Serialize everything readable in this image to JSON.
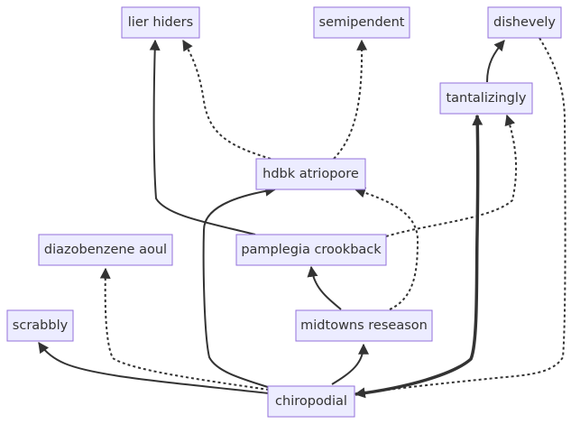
{
  "nodes": {
    "lier_hiders": "lier hiders",
    "semipendent": "semipendent",
    "dishevely": "dishevely",
    "tantalizingly": "tantalizingly",
    "hdbk_atriopore": "hdbk atriopore",
    "diazobenzene_aoul": "diazobenzene aoul",
    "pamplegia_crookback": "pamplegia crookback",
    "scrabbly": "scrabbly",
    "midtowns_reseason": "midtowns reseason",
    "chiropodial": "chiropodial"
  },
  "edges": [
    {
      "from": "hdbk atriopore",
      "to": "lier hiders",
      "style": "dotted"
    },
    {
      "from": "hdbk atriopore",
      "to": "semipendent",
      "style": "dotted"
    },
    {
      "from": "tantalizingly",
      "to": "dishevely",
      "style": "solid"
    },
    {
      "from": "pamplegia crookback",
      "to": "lier hiders",
      "style": "solid"
    },
    {
      "from": "pamplegia crookback",
      "to": "tantalizingly",
      "style": "dotted"
    },
    {
      "from": "midtowns reseason",
      "to": "pamplegia crookback",
      "style": "solid"
    },
    {
      "from": "midtowns reseason",
      "to": "hdbk atriopore",
      "style": "dotted"
    },
    {
      "from": "chiropodial",
      "to": "scrabbly",
      "style": "solid"
    },
    {
      "from": "chiropodial",
      "to": "diazobenzene aoul",
      "style": "dotted"
    },
    {
      "from": "chiropodial",
      "to": "hdbk atriopore",
      "style": "solid"
    },
    {
      "from": "chiropodial",
      "to": "midtowns reseason",
      "style": "solid"
    },
    {
      "from": "chiropodial",
      "to": "tantalizingly",
      "style": "thick"
    },
    {
      "from": "dishevely",
      "to": "chiropodial",
      "style": "dotted"
    }
  ]
}
